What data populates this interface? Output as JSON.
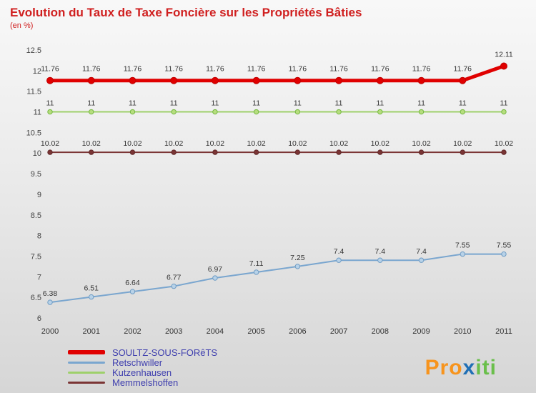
{
  "title": "Evolution du Taux de Taxe Foncière sur les Propriétés Bâties",
  "subtitle": "(en %)",
  "colors": {
    "title": "#d02020",
    "legend_text": "#3f3fae",
    "axis_text": "#444444",
    "data_label_text": "#333333"
  },
  "chart_data": {
    "type": "line",
    "x": [
      2000,
      2001,
      2002,
      2003,
      2004,
      2005,
      2006,
      2007,
      2008,
      2009,
      2010,
      2011
    ],
    "ylim": [
      6,
      12.5
    ],
    "y_ticks": [
      6,
      6.5,
      7,
      7.5,
      8,
      8.5,
      9,
      9.5,
      10,
      10.5,
      11,
      11.5,
      12,
      12.5
    ],
    "grid": false,
    "legend_position": "bottom-left",
    "series": [
      {
        "name": "SOULTZ-SOUS-FORêTS",
        "color": "#e00000",
        "width": 5,
        "marker_fill": "#e00000",
        "marker_stroke": "#c00000",
        "values": [
          11.76,
          11.76,
          11.76,
          11.76,
          11.76,
          11.76,
          11.76,
          11.76,
          11.76,
          11.76,
          11.76,
          12.11
        ]
      },
      {
        "name": "Retschwiller",
        "color": "#7aa6cf",
        "width": 2,
        "marker_fill": "#b8d2e8",
        "marker_stroke": "#6f9cc4",
        "values": [
          6.38,
          6.51,
          6.64,
          6.77,
          6.97,
          7.11,
          7.25,
          7.4,
          7.4,
          7.4,
          7.55,
          7.55
        ]
      },
      {
        "name": "Kutzenhausen",
        "color": "#9ed06b",
        "width": 2,
        "marker_fill": "#b6dd7e",
        "marker_stroke": "#74b840",
        "values": [
          11,
          11,
          11,
          11,
          11,
          11,
          11,
          11,
          11,
          11,
          11,
          11
        ]
      },
      {
        "name": "Memmelshoffen",
        "color": "#7b3535",
        "width": 2,
        "marker_fill": "#7b3535",
        "marker_stroke": "#5e2727",
        "values": [
          10.02,
          10.02,
          10.02,
          10.02,
          10.02,
          10.02,
          10.02,
          10.02,
          10.02,
          10.02,
          10.02,
          10.02
        ]
      }
    ]
  },
  "logo": {
    "parts": [
      {
        "text": "Pro",
        "color": "#f7941d"
      },
      {
        "text": "x",
        "color": "#1f6fb5"
      },
      {
        "text": "iti",
        "color": "#6abf4b"
      }
    ]
  }
}
